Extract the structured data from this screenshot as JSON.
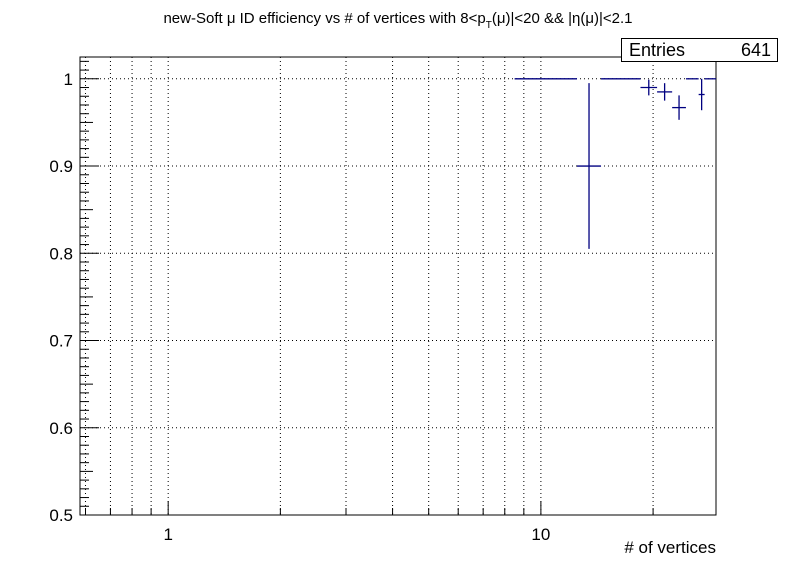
{
  "chart_data": {
    "type": "scatter",
    "title_parts": {
      "before_sub": "new-Soft μ ID efficiency vs # of vertices with 8<p",
      "sub": "T",
      "after_sub": "(μ)|<20 && |η(μ)|<2.1"
    },
    "xlabel": "# of vertices",
    "ylabel": "",
    "xscale": "log",
    "xlim": [
      0.58,
      29.5
    ],
    "ylim": [
      0.5,
      1.025
    ],
    "x_tick_labels": [
      "1",
      "10"
    ],
    "y_tick_labels": [
      "0.5",
      "0.6",
      "0.7",
      "0.8",
      "0.9",
      "1"
    ],
    "grid": true,
    "marker_color": "#000080",
    "stats": {
      "label": "Entries",
      "value": "641"
    },
    "points": [
      {
        "x_low": 8.5,
        "x_high": 12.5,
        "y": 1.0,
        "y_err_low": 0,
        "y_err_high": 0
      },
      {
        "x_low": 12.5,
        "x_high": 14.5,
        "y": 0.9,
        "y_err_low": 0.095,
        "y_err_high": 0.095
      },
      {
        "x_low": 14.5,
        "x_high": 18.5,
        "y": 1.0,
        "y_err_low": 0,
        "y_err_high": 0
      },
      {
        "x_low": 18.5,
        "x_high": 20.5,
        "y": 0.99,
        "y_err_low": 0.009,
        "y_err_high": 0.009
      },
      {
        "x_low": 20.5,
        "x_high": 22.5,
        "y": 0.985,
        "y_err_low": 0.01,
        "y_err_high": 0.01
      },
      {
        "x_low": 22.5,
        "x_high": 24.5,
        "y": 0.967,
        "y_err_low": 0.014,
        "y_err_high": 0.014
      },
      {
        "x_low": 24.5,
        "x_high": 26.5,
        "y": 1.0,
        "y_err_low": 0,
        "y_err_high": 0
      },
      {
        "x_low": 26.5,
        "x_high": 27.5,
        "y": 0.982,
        "y_err_low": 0.018,
        "y_err_high": 0.018
      },
      {
        "x_low": 27.5,
        "x_high": 29.5,
        "y": 1.0,
        "y_err_low": 0,
        "y_err_high": 0
      }
    ]
  }
}
